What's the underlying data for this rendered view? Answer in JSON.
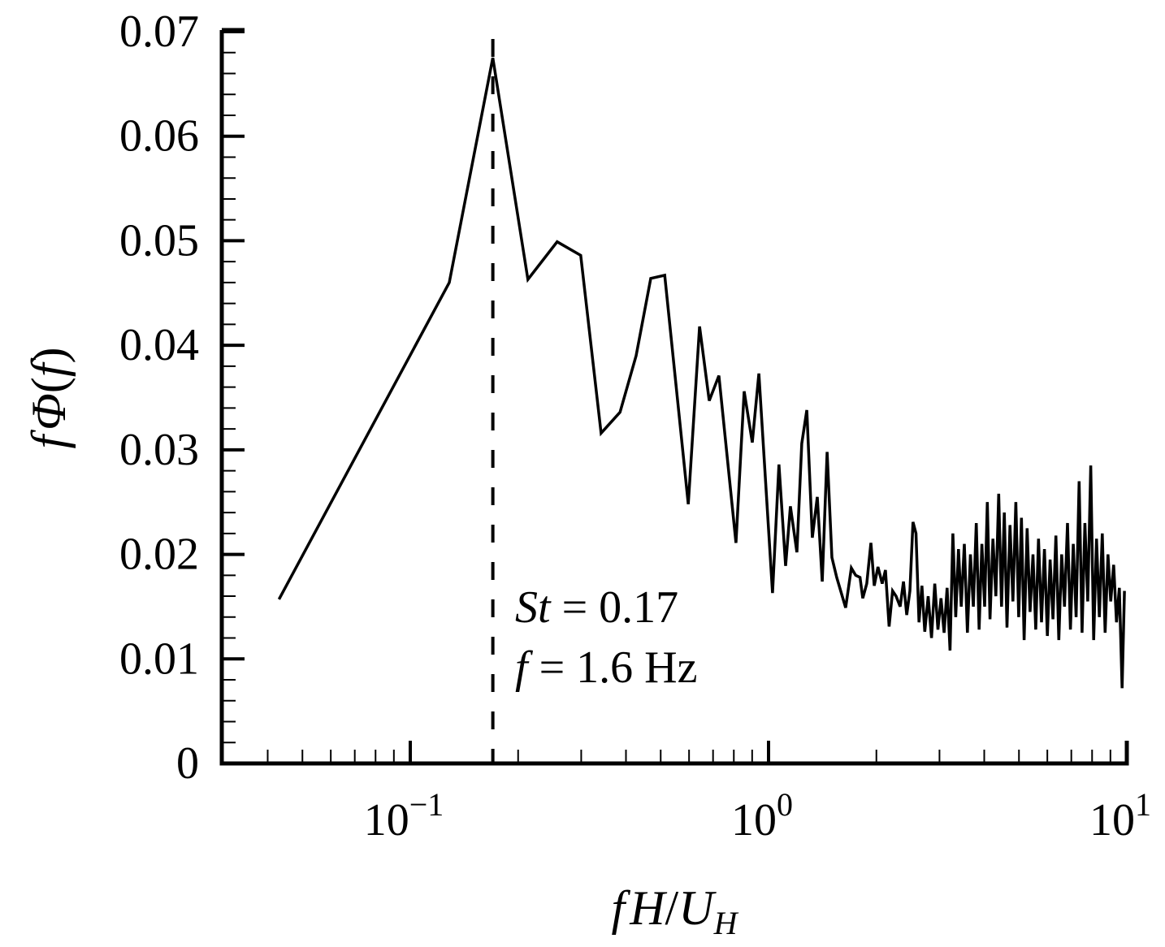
{
  "chart_data": {
    "type": "line",
    "title": "",
    "xlabel": "fH/U_H",
    "ylabel": "fΦ(f)",
    "xscale": "log",
    "xlim": [
      0.03,
      10
    ],
    "ylim": [
      0,
      0.07
    ],
    "grid": false,
    "legend": null,
    "x_ticks": [
      {
        "value": 0.1,
        "base": "10",
        "exp": "−1"
      },
      {
        "value": 1,
        "base": "10",
        "exp": "0"
      },
      {
        "value": 10,
        "base": "10",
        "exp": "1"
      }
    ],
    "y_ticks": [
      {
        "value": 0,
        "label": "0"
      },
      {
        "value": 0.01,
        "label": "0.01"
      },
      {
        "value": 0.02,
        "label": "0.02"
      },
      {
        "value": 0.03,
        "label": "0.03"
      },
      {
        "value": 0.04,
        "label": "0.04"
      },
      {
        "value": 0.05,
        "label": "0.05"
      },
      {
        "value": 0.06,
        "label": "0.06"
      },
      {
        "value": 0.07,
        "label": "0.07"
      }
    ],
    "reference_line": {
      "x": 0.17,
      "style": "dashed",
      "label": "St = 0.17"
    },
    "annotations": [
      {
        "text_italic": "St",
        "text_rest": " = 0.17",
        "x": 0.178,
        "y": 0.0148
      },
      {
        "text_italic": "f",
        "text_rest": " = 1.6 Hz",
        "x": 0.178,
        "y": 0.0088
      }
    ],
    "series": [
      {
        "name": "fΦ(f)",
        "color": "#000000",
        "x": [
          0.043,
          0.1285,
          0.17,
          0.213,
          0.257,
          0.299,
          0.341,
          0.385,
          0.427,
          0.469,
          0.513,
          0.597,
          0.642,
          0.683,
          0.727,
          0.811,
          0.855,
          0.901,
          0.94,
          1.026,
          1.069,
          1.116,
          1.151,
          1.2,
          1.238,
          1.279,
          1.325,
          1.368,
          1.412,
          1.457,
          1.503,
          1.55,
          1.641,
          1.702,
          1.75,
          1.8,
          1.832,
          1.88,
          1.931,
          1.972,
          2.02,
          2.076,
          2.12,
          2.17,
          2.22,
          2.27,
          2.33,
          2.38,
          2.43,
          2.48,
          2.53,
          2.58,
          2.63,
          2.68,
          2.73,
          2.79,
          2.85,
          2.91,
          2.97,
          3.03,
          3.09,
          3.15,
          3.21,
          3.27,
          3.33,
          3.39,
          3.45,
          3.52,
          3.59,
          3.66,
          3.73,
          3.8,
          3.87,
          3.94,
          4.01,
          4.08,
          4.15,
          4.23,
          4.31,
          4.39,
          4.47,
          4.55,
          4.63,
          4.72,
          4.81,
          4.9,
          4.99,
          5.08,
          5.17,
          5.27,
          5.37,
          5.47,
          5.57,
          5.67,
          5.78,
          5.89,
          6.0,
          6.11,
          6.22,
          6.34,
          6.46,
          6.58,
          6.7,
          6.83,
          6.96,
          7.09,
          7.22,
          7.36,
          7.5,
          7.64,
          7.78,
          7.93,
          8.08,
          8.23,
          8.38,
          8.54,
          8.7,
          8.86,
          9.02,
          9.19,
          9.36,
          9.53,
          9.7,
          9.85
        ],
        "y": [
          0.0157,
          0.046,
          0.0675,
          0.0463,
          0.0499,
          0.0486,
          0.0316,
          0.0336,
          0.039,
          0.0464,
          0.0467,
          0.0248,
          0.0418,
          0.0347,
          0.0371,
          0.0211,
          0.0356,
          0.0307,
          0.0373,
          0.0163,
          0.0286,
          0.0189,
          0.0246,
          0.0202,
          0.0306,
          0.0338,
          0.0216,
          0.0255,
          0.0174,
          0.0298,
          0.0197,
          0.0178,
          0.0149,
          0.0187,
          0.018,
          0.0178,
          0.0158,
          0.0172,
          0.0211,
          0.017,
          0.0188,
          0.0172,
          0.0185,
          0.0131,
          0.0165,
          0.016,
          0.015,
          0.0174,
          0.0142,
          0.0165,
          0.0231,
          0.022,
          0.0135,
          0.017,
          0.0126,
          0.016,
          0.012,
          0.0172,
          0.0128,
          0.0158,
          0.0125,
          0.0168,
          0.0108,
          0.022,
          0.014,
          0.0205,
          0.015,
          0.021,
          0.0125,
          0.02,
          0.015,
          0.023,
          0.0128,
          0.021,
          0.015,
          0.025,
          0.0138,
          0.0215,
          0.016,
          0.0258,
          0.015,
          0.024,
          0.013,
          0.0228,
          0.0155,
          0.025,
          0.014,
          0.0235,
          0.0118,
          0.0225,
          0.0145,
          0.02,
          0.0128,
          0.0215,
          0.0135,
          0.0205,
          0.0122,
          0.0195,
          0.0138,
          0.0218,
          0.0118,
          0.02,
          0.015,
          0.023,
          0.0128,
          0.021,
          0.014,
          0.027,
          0.0125,
          0.023,
          0.0155,
          0.0285,
          0.0118,
          0.0215,
          0.014,
          0.022,
          0.0125,
          0.02,
          0.0155,
          0.019,
          0.0135,
          0.0168,
          0.0072,
          0.0165
        ]
      }
    ]
  }
}
